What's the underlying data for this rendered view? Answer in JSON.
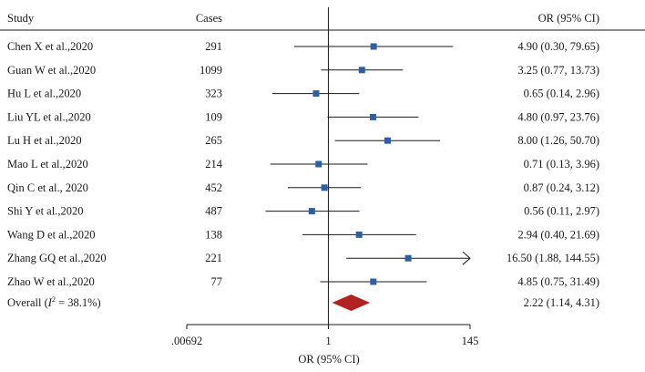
{
  "chart_data": {
    "type": "forest",
    "headers": {
      "study": "Study",
      "cases": "Cases",
      "or_ci": "OR (95% CI)"
    },
    "xlabel": "OR (95% CI)",
    "x_scale": "log",
    "x_ticks": [
      {
        "value": 0.00692,
        "label": ".00692"
      },
      {
        "value": 1,
        "label": "1"
      },
      {
        "value": 145,
        "label": "145"
      }
    ],
    "xlim": [
      0.00692,
      145
    ],
    "reference_line": 1,
    "colors": {
      "marker": "#2e5fa3",
      "diamond": "#b22222",
      "line": "#1a1a1a"
    },
    "studies": [
      {
        "study": "Chen X et al.,2020",
        "cases": "291",
        "or": 4.9,
        "lo": 0.3,
        "hi": 79.65,
        "label": "4.90 (0.30, 79.65)"
      },
      {
        "study": "Guan W et al.,2020",
        "cases": "1099",
        "or": 3.25,
        "lo": 0.77,
        "hi": 13.73,
        "label": "3.25 (0.77, 13.73)"
      },
      {
        "study": "Hu L et al.,2020",
        "cases": "323",
        "or": 0.65,
        "lo": 0.14,
        "hi": 2.96,
        "label": "0.65 (0.14, 2.96)"
      },
      {
        "study": "Liu YL et al.,2020",
        "cases": "109",
        "or": 4.8,
        "lo": 0.97,
        "hi": 23.76,
        "label": "4.80 (0.97, 23.76)"
      },
      {
        "study": "Lu H et al.,2020",
        "cases": "265",
        "or": 8.0,
        "lo": 1.26,
        "hi": 50.7,
        "label": "8.00 (1.26, 50.70)"
      },
      {
        "study": "Mao L et al.,2020",
        "cases": "214",
        "or": 0.71,
        "lo": 0.13,
        "hi": 3.96,
        "label": "0.71 (0.13, 3.96)"
      },
      {
        "study": "Qin C et al., 2020",
        "cases": "452",
        "or": 0.87,
        "lo": 0.24,
        "hi": 3.12,
        "label": "0.87 (0.24, 3.12)"
      },
      {
        "study": "Shi Y et al.,2020",
        "cases": "487",
        "or": 0.56,
        "lo": 0.11,
        "hi": 2.97,
        "label": "0.56 (0.11, 2.97)"
      },
      {
        "study": "Wang D et al.,2020",
        "cases": "138",
        "or": 2.94,
        "lo": 0.4,
        "hi": 21.69,
        "label": "2.94 (0.40, 21.69)"
      },
      {
        "study": "Zhang GQ et al.,2020",
        "cases": "221",
        "or": 16.5,
        "lo": 1.88,
        "hi": 144.55,
        "label": "16.50 (1.88, 144.55)",
        "truncated_hi": true
      },
      {
        "study": "Zhao W et al.,2020",
        "cases": "77",
        "or": 4.85,
        "lo": 0.75,
        "hi": 31.49,
        "label": "4.85 (0.75, 31.49)"
      }
    ],
    "overall": {
      "label_prefix": "Overall (",
      "i2_symbol": "I",
      "i2_sup": "2",
      "label_suffix": " = 38.1%)",
      "or": 2.22,
      "lo": 1.14,
      "hi": 4.31,
      "label": "2.22 (1.14, 4.31)"
    }
  }
}
